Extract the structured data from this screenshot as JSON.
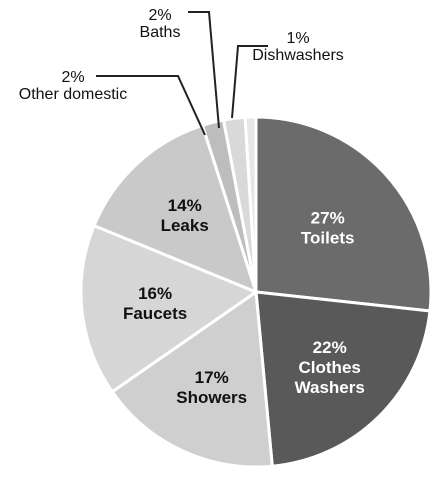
{
  "chart_data": {
    "type": "pie",
    "slices": [
      {
        "label": "Toilets",
        "value": 27,
        "display": "27%",
        "color": "#6b6b6b",
        "text_color": "#ffffff"
      },
      {
        "label": "Clothes Washers",
        "value": 22,
        "display": "22%",
        "color": "#595959",
        "text_color": "#ffffff"
      },
      {
        "label": "Showers",
        "value": 17,
        "display": "17%",
        "color": "#cfcfcf",
        "text_color": "#111111"
      },
      {
        "label": "Faucets",
        "value": 16,
        "display": "16%",
        "color": "#d6d6d6",
        "text_color": "#111111"
      },
      {
        "label": "Leaks",
        "value": 14,
        "display": "14%",
        "color": "#c9c9c9",
        "text_color": "#111111"
      },
      {
        "label": "Other domestic",
        "value": 2,
        "display": "2%",
        "color": "#bdbdbd",
        "text_color": "#111111"
      },
      {
        "label": "Baths",
        "value": 2,
        "display": "2%",
        "color": "#d9d9d9",
        "text_color": "#111111"
      },
      {
        "label": "Dishwashers",
        "value": 1,
        "display": "1%",
        "color": "#e6e6e6",
        "text_color": "#111111"
      }
    ]
  }
}
